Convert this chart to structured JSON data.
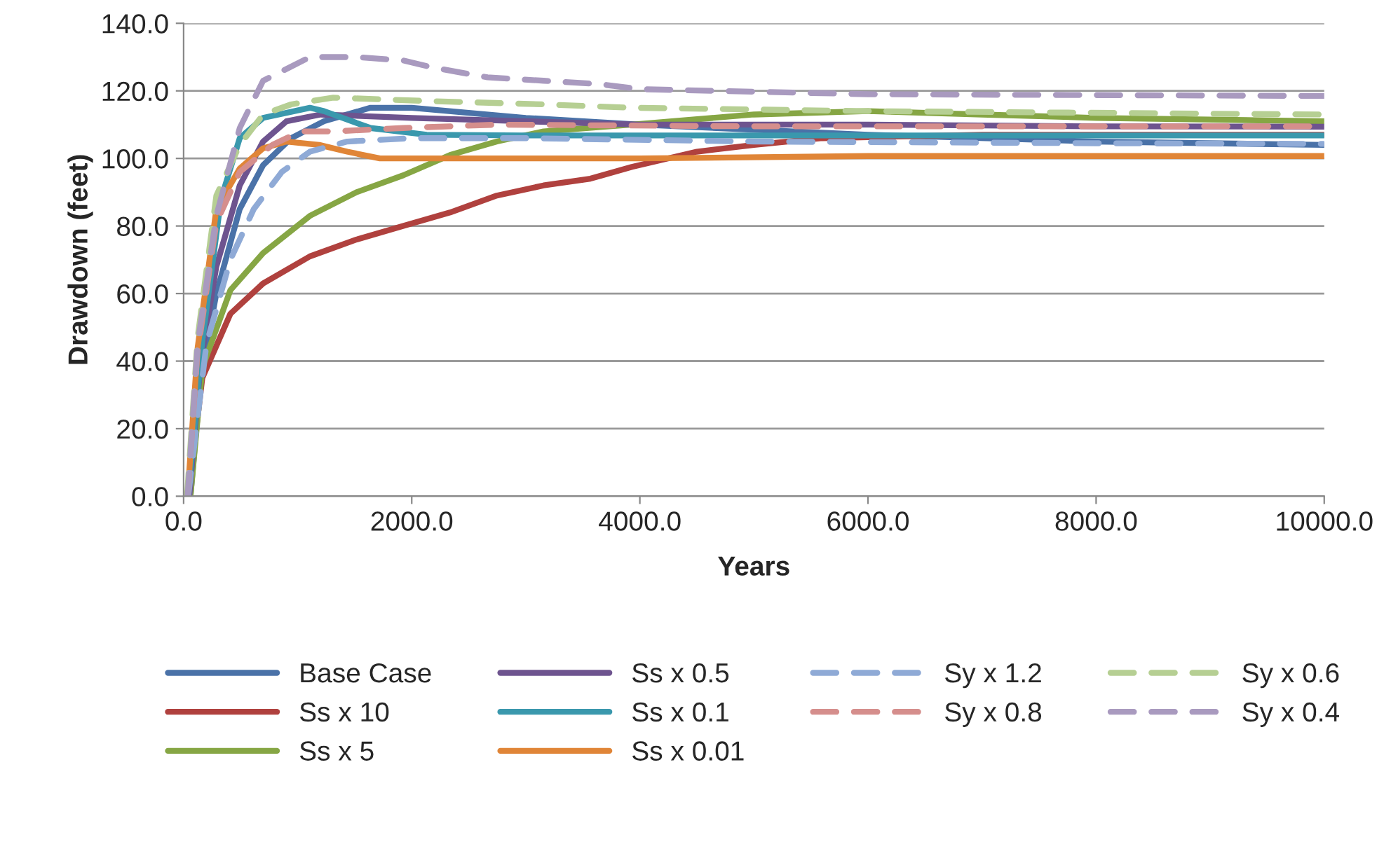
{
  "chart_data": {
    "type": "line",
    "xlabel": "Years",
    "ylabel": "Drawdown (feet)",
    "xlim": [
      0,
      10000
    ],
    "ylim": [
      0,
      140
    ],
    "xticks": [
      {
        "value": 0,
        "label": "0.0"
      },
      {
        "value": 2000,
        "label": "2000.0"
      },
      {
        "value": 4000,
        "label": "4000.0"
      },
      {
        "value": 6000,
        "label": "6000.0"
      },
      {
        "value": 8000,
        "label": "8000.0"
      },
      {
        "value": 10000,
        "label": "10000.0"
      }
    ],
    "yticks": [
      {
        "value": 0,
        "label": "0.0"
      },
      {
        "value": 20,
        "label": "20.0"
      },
      {
        "value": 40,
        "label": "40.0"
      },
      {
        "value": 60,
        "label": "60.0"
      },
      {
        "value": 80,
        "label": "80.0"
      },
      {
        "value": 100,
        "label": "100.0"
      },
      {
        "value": 120,
        "label": "120.0"
      },
      {
        "value": 140,
        "label": "140.0"
      }
    ],
    "grid": "y",
    "legend": "bottom",
    "marker": "none",
    "series": [
      {
        "name": "Base Case",
        "color": "#4a72a8",
        "line_style": "solid",
        "x": [
          60,
          150,
          287,
          492,
          697,
          943,
          1230,
          1639,
          2000,
          3000,
          4000,
          6000,
          8000,
          10000
        ],
        "values": [
          0,
          35,
          60,
          85,
          98,
          106,
          111,
          115,
          115,
          112,
          110,
          107,
          105,
          104
        ]
      },
      {
        "name": "Ss x 10",
        "color": "#b0413e",
        "line_style": "solid",
        "x": [
          40,
          164,
          410,
          697,
          1107,
          1516,
          1926,
          2336,
          2746,
          3156,
          3566,
          3930,
          4500,
          5000,
          5600,
          7000,
          10000
        ],
        "values": [
          0,
          35,
          54,
          63,
          71,
          76,
          80,
          84,
          89,
          92,
          94,
          97.5,
          102,
          104,
          106,
          107,
          107
        ]
      },
      {
        "name": "Ss x 5",
        "color": "#86a644",
        "line_style": "solid",
        "x": [
          60,
          164,
          410,
          697,
          1107,
          1516,
          1926,
          2336,
          2746,
          3156,
          3930,
          5000,
          6000,
          7000,
          8000,
          10000
        ],
        "values": [
          0,
          38,
          61,
          72,
          83,
          90,
          95,
          101,
          105,
          108,
          110,
          113,
          114,
          113,
          112,
          111
        ]
      },
      {
        "name": "Ss x 0.5",
        "color": "#6e548f",
        "line_style": "solid",
        "x": [
          50,
          150,
          287,
          492,
          697,
          902,
          1200,
          2000,
          3000,
          4000,
          6000,
          8000,
          10000
        ],
        "values": [
          0,
          40,
          68,
          92,
          105,
          111,
          113,
          112,
          111,
          110,
          110,
          109.5,
          109.4
        ]
      },
      {
        "name": "Ss x 0.1",
        "color": "#3a98ad",
        "line_style": "solid",
        "x": [
          40,
          164,
          328,
          492,
          697,
          1107,
          1230,
          1639,
          2131,
          3000,
          5000,
          8000,
          10000
        ],
        "values": [
          0,
          46,
          88,
          106,
          112,
          115,
          114,
          109,
          107,
          106.8,
          106.8,
          106.8,
          106.8
        ]
      },
      {
        "name": "Ss x 0.01",
        "color": "#e08537",
        "line_style": "solid",
        "x": [
          35,
          123,
          287,
          492,
          697,
          902,
          1189,
          1434,
          1721,
          2500,
          4000,
          6000,
          10000
        ],
        "values": [
          0,
          44,
          85,
          97,
          103,
          105,
          104,
          102,
          100,
          100,
          100,
          100.7,
          100.7
        ]
      },
      {
        "name": "Sy x 1.2",
        "color": "#8faad6",
        "line_style": "dashed",
        "x": [
          40,
          200,
          410,
          615,
          861,
          1107,
          1434,
          2000,
          3000,
          5000,
          8000,
          10000
        ],
        "values": [
          0,
          45,
          70,
          85,
          96,
          102,
          105,
          106,
          106,
          105,
          104.5,
          104.3
        ]
      },
      {
        "name": "Sy x 0.8",
        "color": "#d58e8c",
        "line_style": "dashed",
        "x": [
          35,
          120,
          287,
          492,
          779,
          1025,
          1312,
          1926,
          2746,
          5000,
          10000
        ],
        "values": [
          0,
          42,
          81,
          96,
          104,
          108,
          108,
          109,
          110,
          109.5,
          109.5
        ]
      },
      {
        "name": "Sy x 0.6",
        "color": "#b6cf93",
        "line_style": "dashed",
        "x": [
          30,
          123,
          287,
          492,
          697,
          943,
          1312,
          2131,
          3156,
          3930,
          6000,
          10000
        ],
        "values": [
          0,
          47,
          89,
          104,
          113,
          116,
          118,
          117,
          116,
          115,
          114,
          113
        ]
      },
      {
        "name": "Sy x 0.4",
        "color": "#a99abf",
        "line_style": "dashed",
        "x": [
          35,
          123,
          287,
          492,
          697,
          1107,
          1516,
          1926,
          2172,
          2664,
          3156,
          3648,
          4000,
          6000,
          10000
        ],
        "values": [
          0,
          45,
          83,
          109,
          123,
          130,
          130,
          129,
          127,
          124,
          123,
          122,
          120.5,
          119,
          118.5
        ]
      }
    ]
  }
}
